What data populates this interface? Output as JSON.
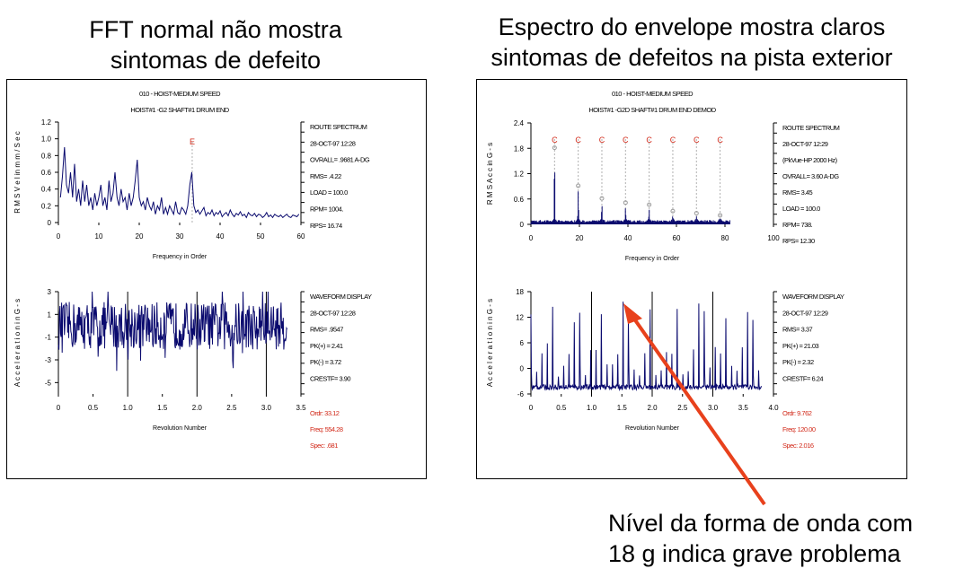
{
  "headings": {
    "left": [
      "FFT normal  não mostra",
      "sintomas de defeito"
    ],
    "right": [
      "Espectro do envelope mostra claros",
      "sintomas de defeitos na pista  exterior"
    ]
  },
  "annotation": [
    "Nível da forma de onda com",
    "18 g indica grave problema"
  ],
  "colors": {
    "trace": "#0a0a6e",
    "marker": "#d22a1a",
    "arrow": "#e8411c",
    "frame": "#000000"
  },
  "chart_data": [
    {
      "id": "left-spectrum",
      "type": "line",
      "header": [
        "010 - HOIST-MEDIUM SPEED",
        "HOIST#1  -G2   SHAFT#1 DRUM END"
      ],
      "ylabel": "R M S  V e l  in  m m / S e c",
      "xlabel": "Frequency in Order",
      "xlim": [
        0,
        60
      ],
      "ylim": [
        0,
        1.2
      ],
      "x_ticks": [
        "0",
        "10",
        "20",
        "30",
        "40",
        "50",
        "60"
      ],
      "y_ticks": [
        "0",
        "0.2",
        "0.4",
        "0.6",
        "0.8",
        "1.0",
        "1.2"
      ],
      "info": [
        "ROUTE SPECTRUM",
        "28-OCT-97  12:28",
        "OVRALL= .9681 A-DG",
        "RMS=  .4.22",
        "LOAD = 100.0",
        "RPM=  1004.",
        "RPS=  16.74"
      ],
      "marker": {
        "label": "E",
        "x": 33.1,
        "y": 1.05
      },
      "series": [
        {
          "x": [
            0.5,
            1,
            1.5,
            2,
            2.5,
            3,
            3.5,
            4,
            4.5,
            5,
            5.5,
            6,
            6.5,
            7,
            7.5,
            8,
            8.5,
            9,
            9.5,
            10,
            10.5,
            11,
            11.5,
            12,
            12.5,
            13,
            13.5,
            14,
            14.5,
            15,
            15.5,
            16,
            16.5,
            17,
            17.5,
            18,
            18.5,
            19,
            19.5,
            20,
            20.5,
            21,
            21.5,
            22,
            22.5,
            23,
            23.5,
            24,
            24.5,
            25,
            25.5,
            26,
            26.5,
            27,
            27.5,
            28,
            28.5,
            29,
            29.5,
            30,
            30.5,
            31,
            31.5,
            32,
            32.5,
            33,
            33.5,
            34,
            34.5,
            35,
            35.5,
            36,
            36.5,
            37,
            37.5,
            38,
            38.5,
            39,
            39.5,
            40,
            40.5,
            41,
            41.5,
            42,
            42.5,
            43,
            43.5,
            44,
            44.5,
            45,
            45.5,
            46,
            46.5,
            47,
            47.5,
            48,
            48.5,
            49,
            49.5,
            50,
            50.5,
            51,
            51.5,
            52,
            52.5,
            53,
            53.5,
            54,
            54.5,
            55,
            55.5,
            56,
            56.5,
            57,
            57.5,
            58,
            58.5,
            59,
            59.5
          ],
          "y": [
            0.3,
            0.55,
            0.9,
            0.45,
            0.35,
            0.6,
            0.3,
            0.7,
            0.25,
            0.4,
            0.2,
            0.5,
            0.25,
            0.45,
            0.2,
            0.3,
            0.15,
            0.35,
            0.2,
            0.3,
            0.45,
            0.2,
            0.3,
            0.15,
            0.5,
            0.25,
            0.35,
            0.6,
            0.3,
            0.2,
            0.4,
            0.25,
            0.3,
            0.15,
            0.35,
            0.2,
            0.3,
            0.5,
            0.75,
            0.3,
            0.2,
            0.25,
            0.15,
            0.3,
            0.2,
            0.15,
            0.25,
            0.1,
            0.2,
            0.15,
            0.3,
            0.1,
            0.18,
            0.1,
            0.2,
            0.15,
            0.1,
            0.25,
            0.12,
            0.1,
            0.18,
            0.15,
            0.1,
            0.2,
            0.45,
            0.6,
            0.2,
            0.12,
            0.15,
            0.1,
            0.14,
            0.18,
            0.08,
            0.12,
            0.1,
            0.15,
            0.08,
            0.12,
            0.1,
            0.14,
            0.07,
            0.1,
            0.12,
            0.08,
            0.15,
            0.1,
            0.07,
            0.11,
            0.09,
            0.13,
            0.08,
            0.1,
            0.06,
            0.12,
            0.09,
            0.08,
            0.11,
            0.07,
            0.1,
            0.09,
            0.06,
            0.08,
            0.12,
            0.07,
            0.09,
            0.06,
            0.1,
            0.08,
            0.07,
            0.09,
            0.06,
            0.08,
            0.1,
            0.07,
            0.06,
            0.09,
            0.08,
            0.07,
            0.1
          ]
        }
      ]
    },
    {
      "id": "left-waveform",
      "type": "line",
      "ylabel": "A c c e l e r a t i o n  i n  G - s",
      "xlabel": "Revolution Number",
      "xlim": [
        0,
        3.5
      ],
      "ylim": [
        -6,
        3
      ],
      "x_ticks": [
        "0",
        "0.5",
        "1.0",
        "1.5",
        "2.0",
        "2.5",
        "3.0",
        "3.5"
      ],
      "y_ticks": [
        "-5",
        "-3",
        "-1",
        "1",
        "3"
      ],
      "info": [
        "WAVEFORM DISPLAY",
        "28-OCT-97  12:28",
        "RMS=  .9547",
        "PK(+) = 2.41",
        "PK(-) =  3.72",
        "CRESTF= 3.90"
      ],
      "readout": [
        "Ordr:     33.12",
        "Freq:    554.28",
        "Spec:      .681"
      ],
      "revolution_lines": [
        1.0,
        2.0,
        3.0
      ],
      "series": [
        {
          "x": [],
          "y": []
        }
      ]
    },
    {
      "id": "right-spectrum",
      "type": "line",
      "header": [
        "010 - HOIST-MEDIUM SPEED",
        "HOIST#1  -G2D   SHAFT#1 DRUM END          DEMOD"
      ],
      "ylabel": "R M S  A c c  in  G - s",
      "xlabel": "Frequency in Order",
      "xlim": [
        0,
        100
      ],
      "ylim": [
        0,
        2.4
      ],
      "x_ticks": [
        "0",
        "20",
        "40",
        "60",
        "80",
        "100"
      ],
      "y_ticks": [
        "0",
        "0.6",
        "1.2",
        "1.8",
        "2.4"
      ],
      "info": [
        "ROUTE SPECTRUM",
        "28-OCT-97  12:29",
        "(PkVue-HP 2000 Hz)",
        "OVRALL= 3.60 A-DG",
        "RMS=  3.45",
        "LOAD = 100.0",
        "RPM=  738.",
        "RPS=  12.30"
      ],
      "markers": {
        "label": "C",
        "x": [
          9.75,
          19.5,
          29.25,
          39.0,
          48.75,
          58.5,
          68.25,
          78.0
        ],
        "y": [
          1.75,
          0.85,
          0.55,
          0.45,
          0.4,
          0.25,
          0.2,
          0.15
        ]
      },
      "series": [
        {
          "x": [],
          "y": []
        }
      ]
    },
    {
      "id": "right-waveform",
      "type": "line",
      "ylabel": "A c c e l e r a t i o n  i n  G - s",
      "xlabel": "Revolution Number",
      "xlim": [
        0,
        4.0
      ],
      "ylim": [
        -6,
        18
      ],
      "x_ticks": [
        "0",
        "0.5",
        "1.0",
        "1.5",
        "2.0",
        "2.5",
        "3.0",
        "3.5",
        "4.0"
      ],
      "y_ticks": [
        "-6",
        "0",
        "6",
        "12",
        "18"
      ],
      "info": [
        "WAVEFORM DISPLAY",
        "28-OCT-97  12:29",
        "RMS=  3.37",
        "PK(+) = 21.03",
        "PK(-) =  2.32",
        "CRESTF= 6.24"
      ],
      "readout": [
        "Ordr:     9.762",
        "Freq:    120.00",
        "Spec:     2.016"
      ],
      "revolution_lines": [
        1.0,
        2.0,
        3.0
      ],
      "series": [
        {
          "x": [],
          "y": []
        }
      ]
    }
  ]
}
